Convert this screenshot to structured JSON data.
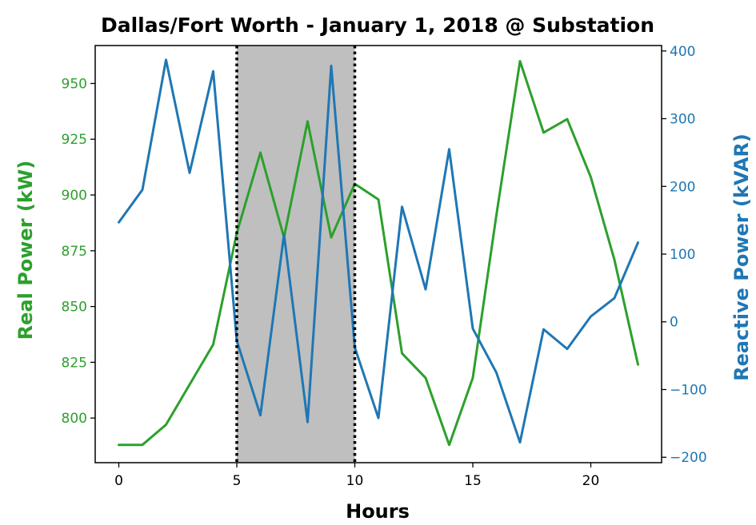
{
  "chart_data": {
    "type": "line",
    "title": "Dallas/Fort Worth - January 1, 2018 @ Substation",
    "xlabel": "Hours",
    "ylabel_left": "Real Power (kW)",
    "ylabel_right": "Reactive Power (kVAR)",
    "xlim": [
      -1,
      23
    ],
    "ylim_left": [
      780,
      967
    ],
    "ylim_right": [
      -208,
      408
    ],
    "x_ticks": [
      0,
      5,
      10,
      15,
      20
    ],
    "y_ticks_left": [
      800,
      825,
      850,
      875,
      900,
      925,
      950
    ],
    "y_ticks_right": [
      -200,
      -100,
      0,
      100,
      200,
      300,
      400
    ],
    "x_tick_labels": [
      "0",
      "5",
      "10",
      "15",
      "20"
    ],
    "y_tick_labels_left": [
      "800",
      "825",
      "850",
      "875",
      "900",
      "925",
      "950"
    ],
    "y_tick_labels_right": [
      "−200",
      "−100",
      "0",
      "100",
      "200",
      "300",
      "400"
    ],
    "shaded_region": {
      "x_start": 5,
      "x_end": 10,
      "color": "#bfbfbf"
    },
    "vlines": [
      5,
      10
    ],
    "grid": false,
    "series": [
      {
        "axis": "left",
        "color": "#2ca02c",
        "x": [
          0,
          1,
          2,
          3,
          4,
          5,
          6,
          7,
          8,
          9,
          10,
          11,
          12,
          13,
          14,
          15,
          16,
          17,
          18,
          19,
          20,
          21,
          22
        ],
        "values": [
          788,
          788,
          797,
          815,
          833,
          883,
          919,
          881,
          933,
          881,
          905,
          898,
          829,
          818,
          788,
          818,
          891,
          960,
          928,
          934,
          908,
          871,
          824
        ]
      },
      {
        "axis": "right",
        "color": "#1f77b4",
        "x": [
          0,
          1,
          2,
          3,
          4,
          5,
          6,
          7,
          8,
          9,
          10,
          11,
          12,
          13,
          14,
          15,
          16,
          17,
          18,
          19,
          20,
          21,
          22
        ],
        "values": [
          147,
          195,
          387,
          220,
          370,
          -28,
          -138,
          129,
          -148,
          378,
          -38,
          -142,
          170,
          48,
          255,
          -10,
          -75,
          -178,
          -11,
          -40,
          8,
          35,
          117
        ]
      }
    ]
  },
  "colors": {
    "green": "#2ca02c",
    "blue": "#1f77b4",
    "shade": "#bfbfbf",
    "axis": "#000000"
  }
}
